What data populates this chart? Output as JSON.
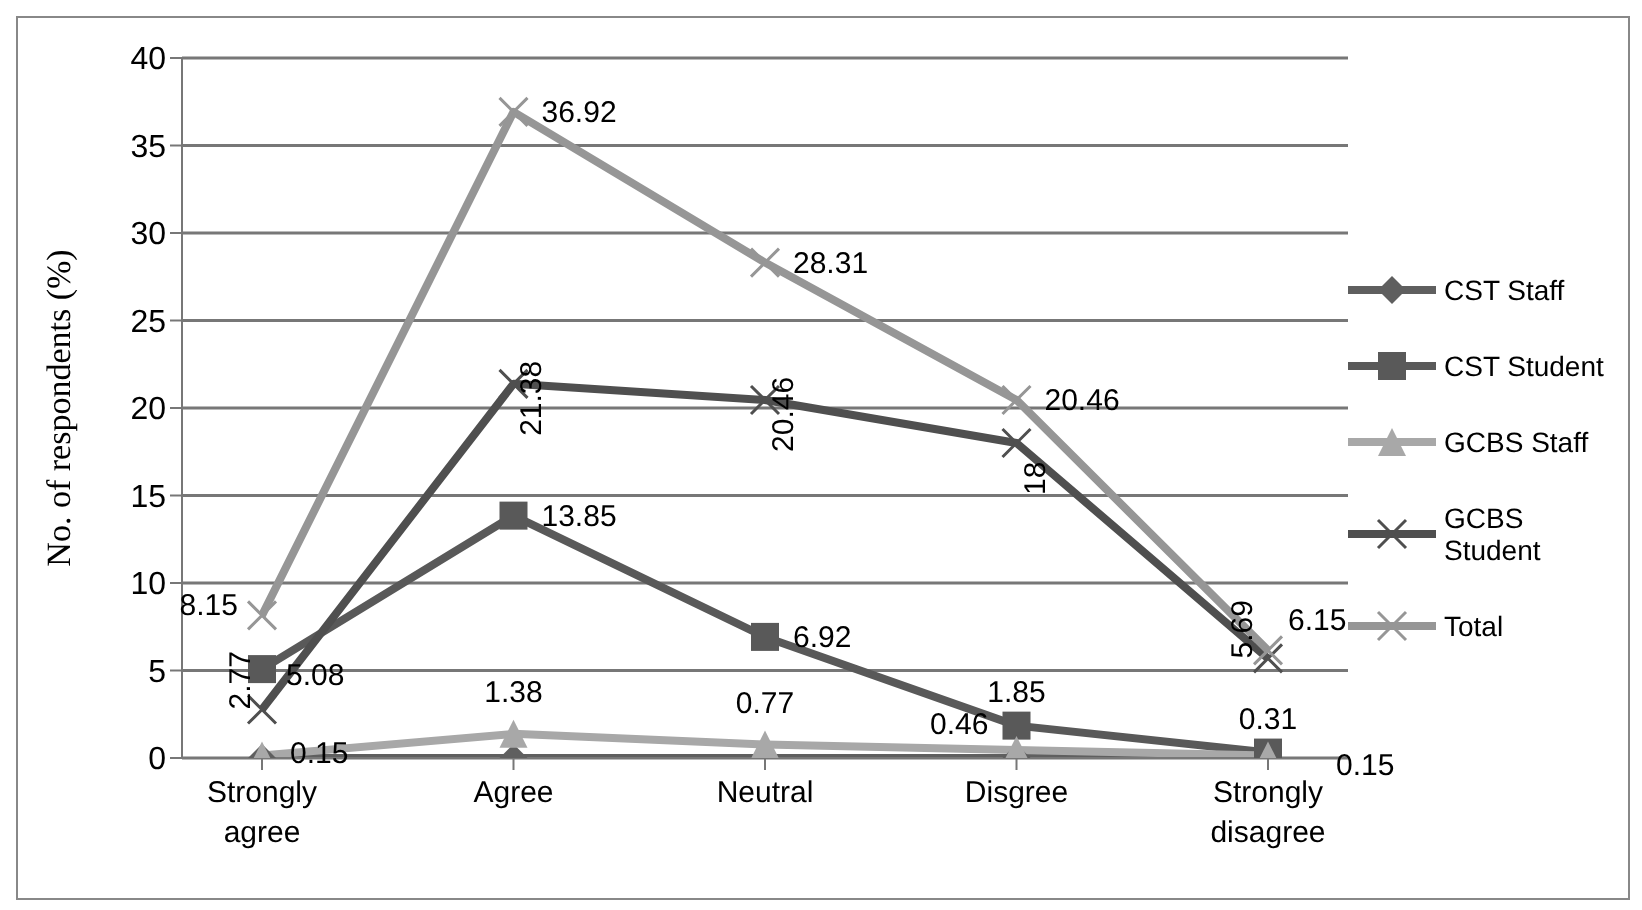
{
  "chart_data": {
    "type": "line",
    "ylabel": "No. of respondents (%)",
    "categories": [
      "Strongly agree",
      "Agree",
      "Neutral",
      "Disgree",
      "Strongly disagree"
    ],
    "ylim": [
      0,
      40
    ],
    "yticks": [
      0,
      5,
      10,
      15,
      20,
      25,
      30,
      35,
      40
    ],
    "grid": "y",
    "legend": "right",
    "series": [
      {
        "name": "CST Staff",
        "color": "#5f5f5f",
        "marker": "diamond",
        "values": [
          0,
          0,
          0,
          0,
          0
        ]
      },
      {
        "name": "CST Student",
        "color": "#595959",
        "marker": "square",
        "values": [
          5.08,
          13.85,
          6.92,
          1.85,
          0.31
        ],
        "value_labels": [
          "5.08",
          "13.85",
          "6.92",
          "1.85",
          "0.31"
        ]
      },
      {
        "name": "GCBS Staff",
        "color": "#a8a8a8",
        "marker": "triangle",
        "values": [
          0.15,
          1.38,
          0.77,
          0.46,
          0.15
        ],
        "value_labels": [
          "0.15",
          "1.38",
          "0.77",
          "0.46",
          "0.15"
        ]
      },
      {
        "name": "GCBS Student",
        "color": "#4f4f4f",
        "marker": "cross",
        "values": [
          2.77,
          21.38,
          20.46,
          18,
          5.69
        ],
        "value_labels": [
          "2.77",
          "21.38",
          "20.46",
          "18",
          "5.69"
        ]
      },
      {
        "name": "Total",
        "color": "#969696",
        "marker": "cross",
        "values": [
          8.15,
          36.92,
          28.31,
          20.46,
          6.15
        ],
        "value_labels": [
          "8.15",
          "36.92",
          "28.31",
          "20.46",
          "6.15"
        ]
      }
    ]
  }
}
